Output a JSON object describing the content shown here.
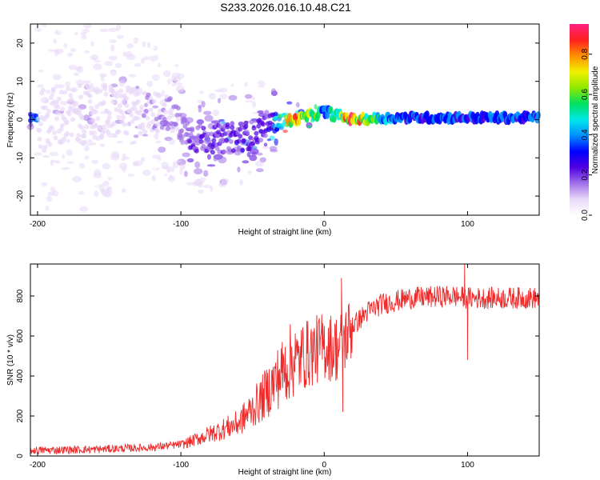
{
  "title": "S233.2026.016.10.48.C21",
  "chart_data": [
    {
      "type": "heatmap",
      "xlabel": "Height of straight line (km)",
      "ylabel": "Frequency (Hz)",
      "xlim": [
        -205,
        150
      ],
      "ylim": [
        -25,
        25
      ],
      "xticks": [
        -200,
        -100,
        0,
        100
      ],
      "yticks": [
        -20,
        -10,
        0,
        10,
        20
      ],
      "colorbar": {
        "label": "Normalized spectral amplitude",
        "range": [
          0,
          0.95
        ],
        "ticks": [
          0.0,
          0.2,
          0.4,
          0.6,
          0.8
        ],
        "colors": [
          "#ffffff",
          "#e8d8f8",
          "#a070e8",
          "#5000e0",
          "#0000ff",
          "#0090ff",
          "#00e8e8",
          "#00e060",
          "#90e800",
          "#f0f000",
          "#ff9000",
          "#ff2020",
          "#ff2080"
        ]
      },
      "band": [
        {
          "x": -200,
          "freq": 0,
          "amp": 0.06,
          "spread": 14
        },
        {
          "x": -150,
          "freq": 2,
          "amp": 0.08,
          "spread": 12
        },
        {
          "x": -110,
          "freq": 2,
          "amp": 0.12,
          "spread": 8
        },
        {
          "x": -90,
          "freq": -5,
          "amp": 0.2,
          "spread": 6
        },
        {
          "x": -70,
          "freq": -5,
          "amp": 0.22,
          "spread": 6
        },
        {
          "x": -50,
          "freq": -4,
          "amp": 0.22,
          "spread": 6
        },
        {
          "x": -40,
          "freq": -1,
          "amp": 0.2,
          "spread": 5
        },
        {
          "x": -20,
          "freq": 0,
          "amp": 0.85,
          "spread": 1.5
        },
        {
          "x": 0,
          "freq": 2,
          "amp": 0.4,
          "spread": 2
        },
        {
          "x": 20,
          "freq": 0,
          "amp": 0.85,
          "spread": 1.5
        },
        {
          "x": 50,
          "freq": 0.5,
          "amp": 0.35,
          "spread": 1.5
        },
        {
          "x": 100,
          "freq": 0.5,
          "amp": 0.35,
          "spread": 1.5
        },
        {
          "x": 150,
          "freq": 0.5,
          "amp": 0.35,
          "spread": 1.5
        }
      ]
    },
    {
      "type": "line",
      "xlabel": "Height of straight line (km)",
      "ylabel": "SNR (10 * v/v)",
      "xlim": [
        -205,
        150
      ],
      "ylim": [
        0,
        960
      ],
      "xticks": [
        -200,
        -100,
        0,
        100
      ],
      "yticks": [
        0,
        200,
        400,
        600,
        800
      ],
      "color": "#ee2a2a",
      "trend": [
        [
          -205,
          20
        ],
        [
          -160,
          25
        ],
        [
          -120,
          35
        ],
        [
          -100,
          50
        ],
        [
          -80,
          100
        ],
        [
          -60,
          150
        ],
        [
          -45,
          250
        ],
        [
          -30,
          380
        ],
        [
          -15,
          500
        ],
        [
          0,
          550
        ],
        [
          10,
          540
        ],
        [
          20,
          650
        ],
        [
          30,
          720
        ],
        [
          40,
          760
        ],
        [
          60,
          790
        ],
        [
          90,
          800
        ],
        [
          100,
          790
        ],
        [
          120,
          790
        ],
        [
          150,
          790
        ]
      ],
      "spikes": [
        [
          12,
          890
        ],
        [
          13,
          220
        ],
        [
          98,
          960
        ],
        [
          100,
          480
        ]
      ]
    }
  ]
}
